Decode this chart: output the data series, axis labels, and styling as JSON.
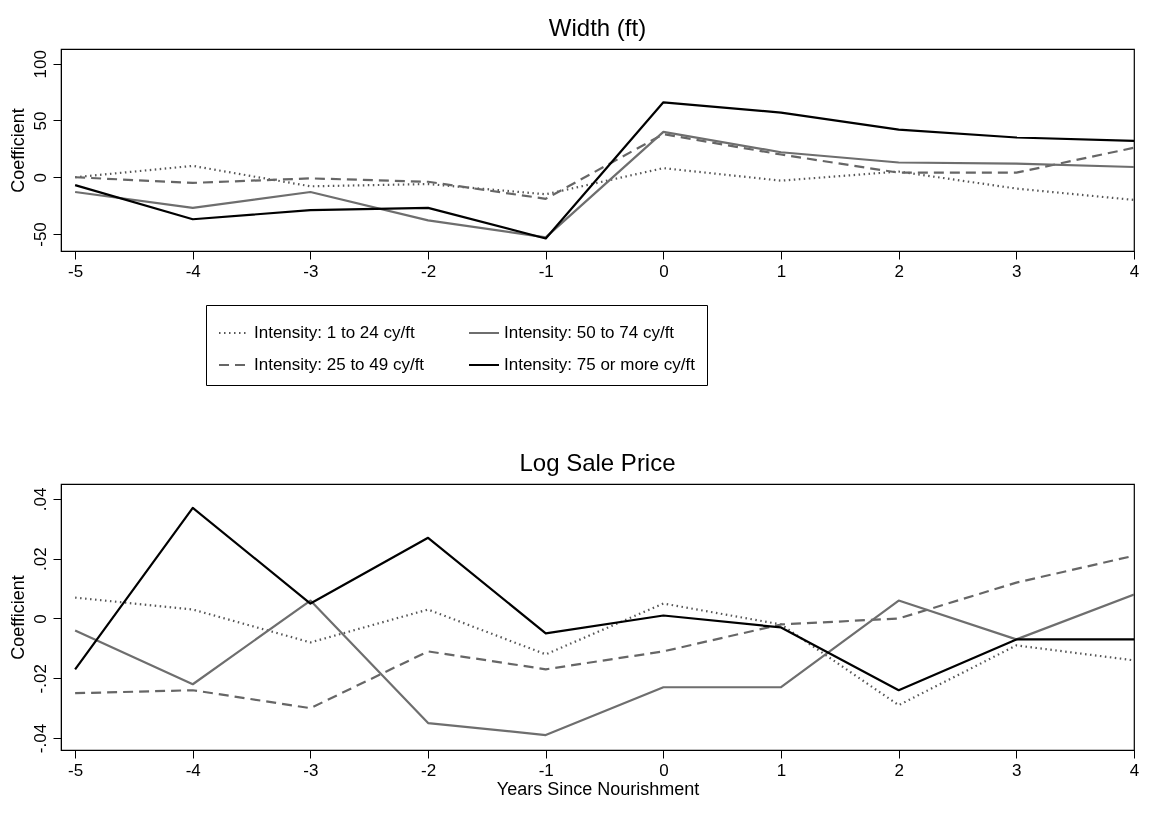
{
  "chart_data": [
    {
      "type": "line",
      "title": "Width (ft)",
      "ylabel": "Coefficient",
      "x": [
        -5,
        -4,
        -3,
        -2,
        -1,
        0,
        1,
        2,
        3,
        4
      ],
      "xlim": [
        -5.12,
        4
      ],
      "xticks": [
        -5,
        -4,
        -3,
        -2,
        -1,
        0,
        1,
        2,
        3,
        4
      ],
      "ylim": [
        -65,
        113
      ],
      "yticks": [
        -50,
        0,
        50,
        100
      ],
      "grid": false,
      "legend": "bottom",
      "marker": "none",
      "series": [
        {
          "name": "Intensity: 1 to 24 cy/ft",
          "color": "#555555",
          "line_style": "dotted",
          "values": [
            0,
            10,
            -8,
            -6,
            -15,
            8,
            -3,
            5,
            -10,
            -20
          ]
        },
        {
          "name": "Intensity: 25 to 49 cy/ft",
          "color": "#666666",
          "line_style": "dashed",
          "values": [
            0,
            -5,
            -1,
            -4,
            -19,
            38,
            20,
            4,
            4,
            26
          ]
        },
        {
          "name": "Intensity: 50 to 74 cy/ft",
          "color": "#6e6e6e",
          "line_style": "solid",
          "values": [
            -13,
            -27,
            -13,
            -38,
            -53,
            40,
            22,
            13,
            12,
            9
          ]
        },
        {
          "name": "Intensity: 75 or more cy/ft",
          "color": "#000000",
          "line_style": "solid",
          "values": [
            -7,
            -37,
            -29,
            -27,
            -54,
            66,
            57,
            42,
            35,
            32
          ]
        }
      ]
    },
    {
      "type": "line",
      "title": "Log Sale Price",
      "ylabel": "Coefficient",
      "xlabel": "Years Since Nourishment",
      "x": [
        -5,
        -4,
        -3,
        -2,
        -1,
        0,
        1,
        2,
        3,
        4
      ],
      "xlim": [
        -5.12,
        4
      ],
      "xticks": [
        -5,
        -4,
        -3,
        -2,
        -1,
        0,
        1,
        2,
        3,
        4
      ],
      "ylim": [
        -0.044,
        0.045
      ],
      "yticks": [
        {
          "value": -0.04,
          "label": "-.04"
        },
        {
          "value": -0.02,
          "label": "-.02"
        },
        0,
        {
          "value": 0.02,
          "label": ".02"
        },
        {
          "value": 0.04,
          "label": ".04"
        }
      ],
      "grid": false,
      "legend": false,
      "marker": "none",
      "series": [
        {
          "color": "#555555",
          "line_style": "dotted",
          "values": [
            0.007,
            0.003,
            -0.008,
            0.003,
            -0.012,
            0.005,
            -0.002,
            -0.029,
            -0.009,
            -0.014
          ]
        },
        {
          "color": "#666666",
          "line_style": "dashed",
          "values": [
            -0.025,
            -0.024,
            -0.03,
            -0.011,
            -0.017,
            -0.011,
            -0.002,
            0,
            0.012,
            0.021
          ]
        },
        {
          "color": "#6e6e6e",
          "line_style": "solid",
          "values": [
            -0.004,
            -0.022,
            0.006,
            -0.035,
            -0.039,
            -0.023,
            -0.023,
            0.006,
            -0.007,
            0.008
          ]
        },
        {
          "color": "#000000",
          "line_style": "solid",
          "values": [
            -0.017,
            0.037,
            0.005,
            0.027,
            -0.005,
            0.001,
            -0.003,
            -0.024,
            -0.007,
            -0.007
          ]
        }
      ]
    }
  ]
}
